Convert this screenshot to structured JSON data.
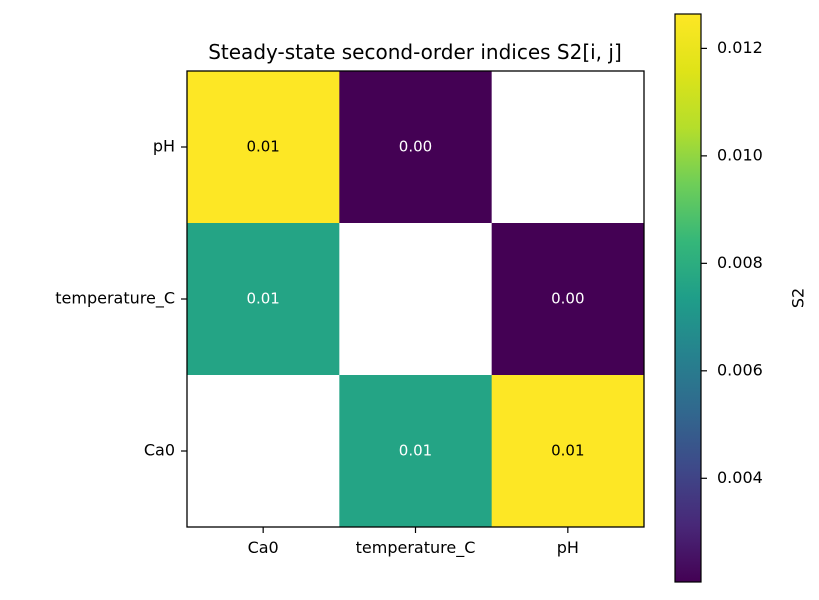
{
  "chart_data": {
    "type": "heatmap",
    "title": "Steady-state second-order indices S2[i, j]",
    "x_categories": [
      "Ca0",
      "temperature_C",
      "pH"
    ],
    "y_categories": [
      "pH",
      "temperature_C",
      "Ca0"
    ],
    "cells": [
      {
        "row": "pH",
        "col": "Ca0",
        "value": 0.01264,
        "label": "0.01"
      },
      {
        "row": "pH",
        "col": "temperature_C",
        "value": 0.00207,
        "label": "0.00"
      },
      {
        "row": "pH",
        "col": "pH",
        "value": null,
        "label": ""
      },
      {
        "row": "temperature_C",
        "col": "Ca0",
        "value": 0.0076,
        "label": "0.01"
      },
      {
        "row": "temperature_C",
        "col": "temperature_C",
        "value": null,
        "label": ""
      },
      {
        "row": "temperature_C",
        "col": "pH",
        "value": 0.00207,
        "label": "0.00"
      },
      {
        "row": "Ca0",
        "col": "Ca0",
        "value": null,
        "label": ""
      },
      {
        "row": "Ca0",
        "col": "temperature_C",
        "value": 0.0076,
        "label": "0.01"
      },
      {
        "row": "Ca0",
        "col": "pH",
        "value": 0.01264,
        "label": "0.01"
      }
    ],
    "colorbar": {
      "label": "S2",
      "colormap": "viridis",
      "range": [
        0.00207,
        0.01264
      ],
      "ticks": [
        0.004,
        0.006,
        0.008,
        0.01,
        0.012
      ],
      "tick_labels": [
        "0.004",
        "0.006",
        "0.008",
        "0.010",
        "0.012"
      ]
    },
    "missing_color": "#ffffff"
  }
}
